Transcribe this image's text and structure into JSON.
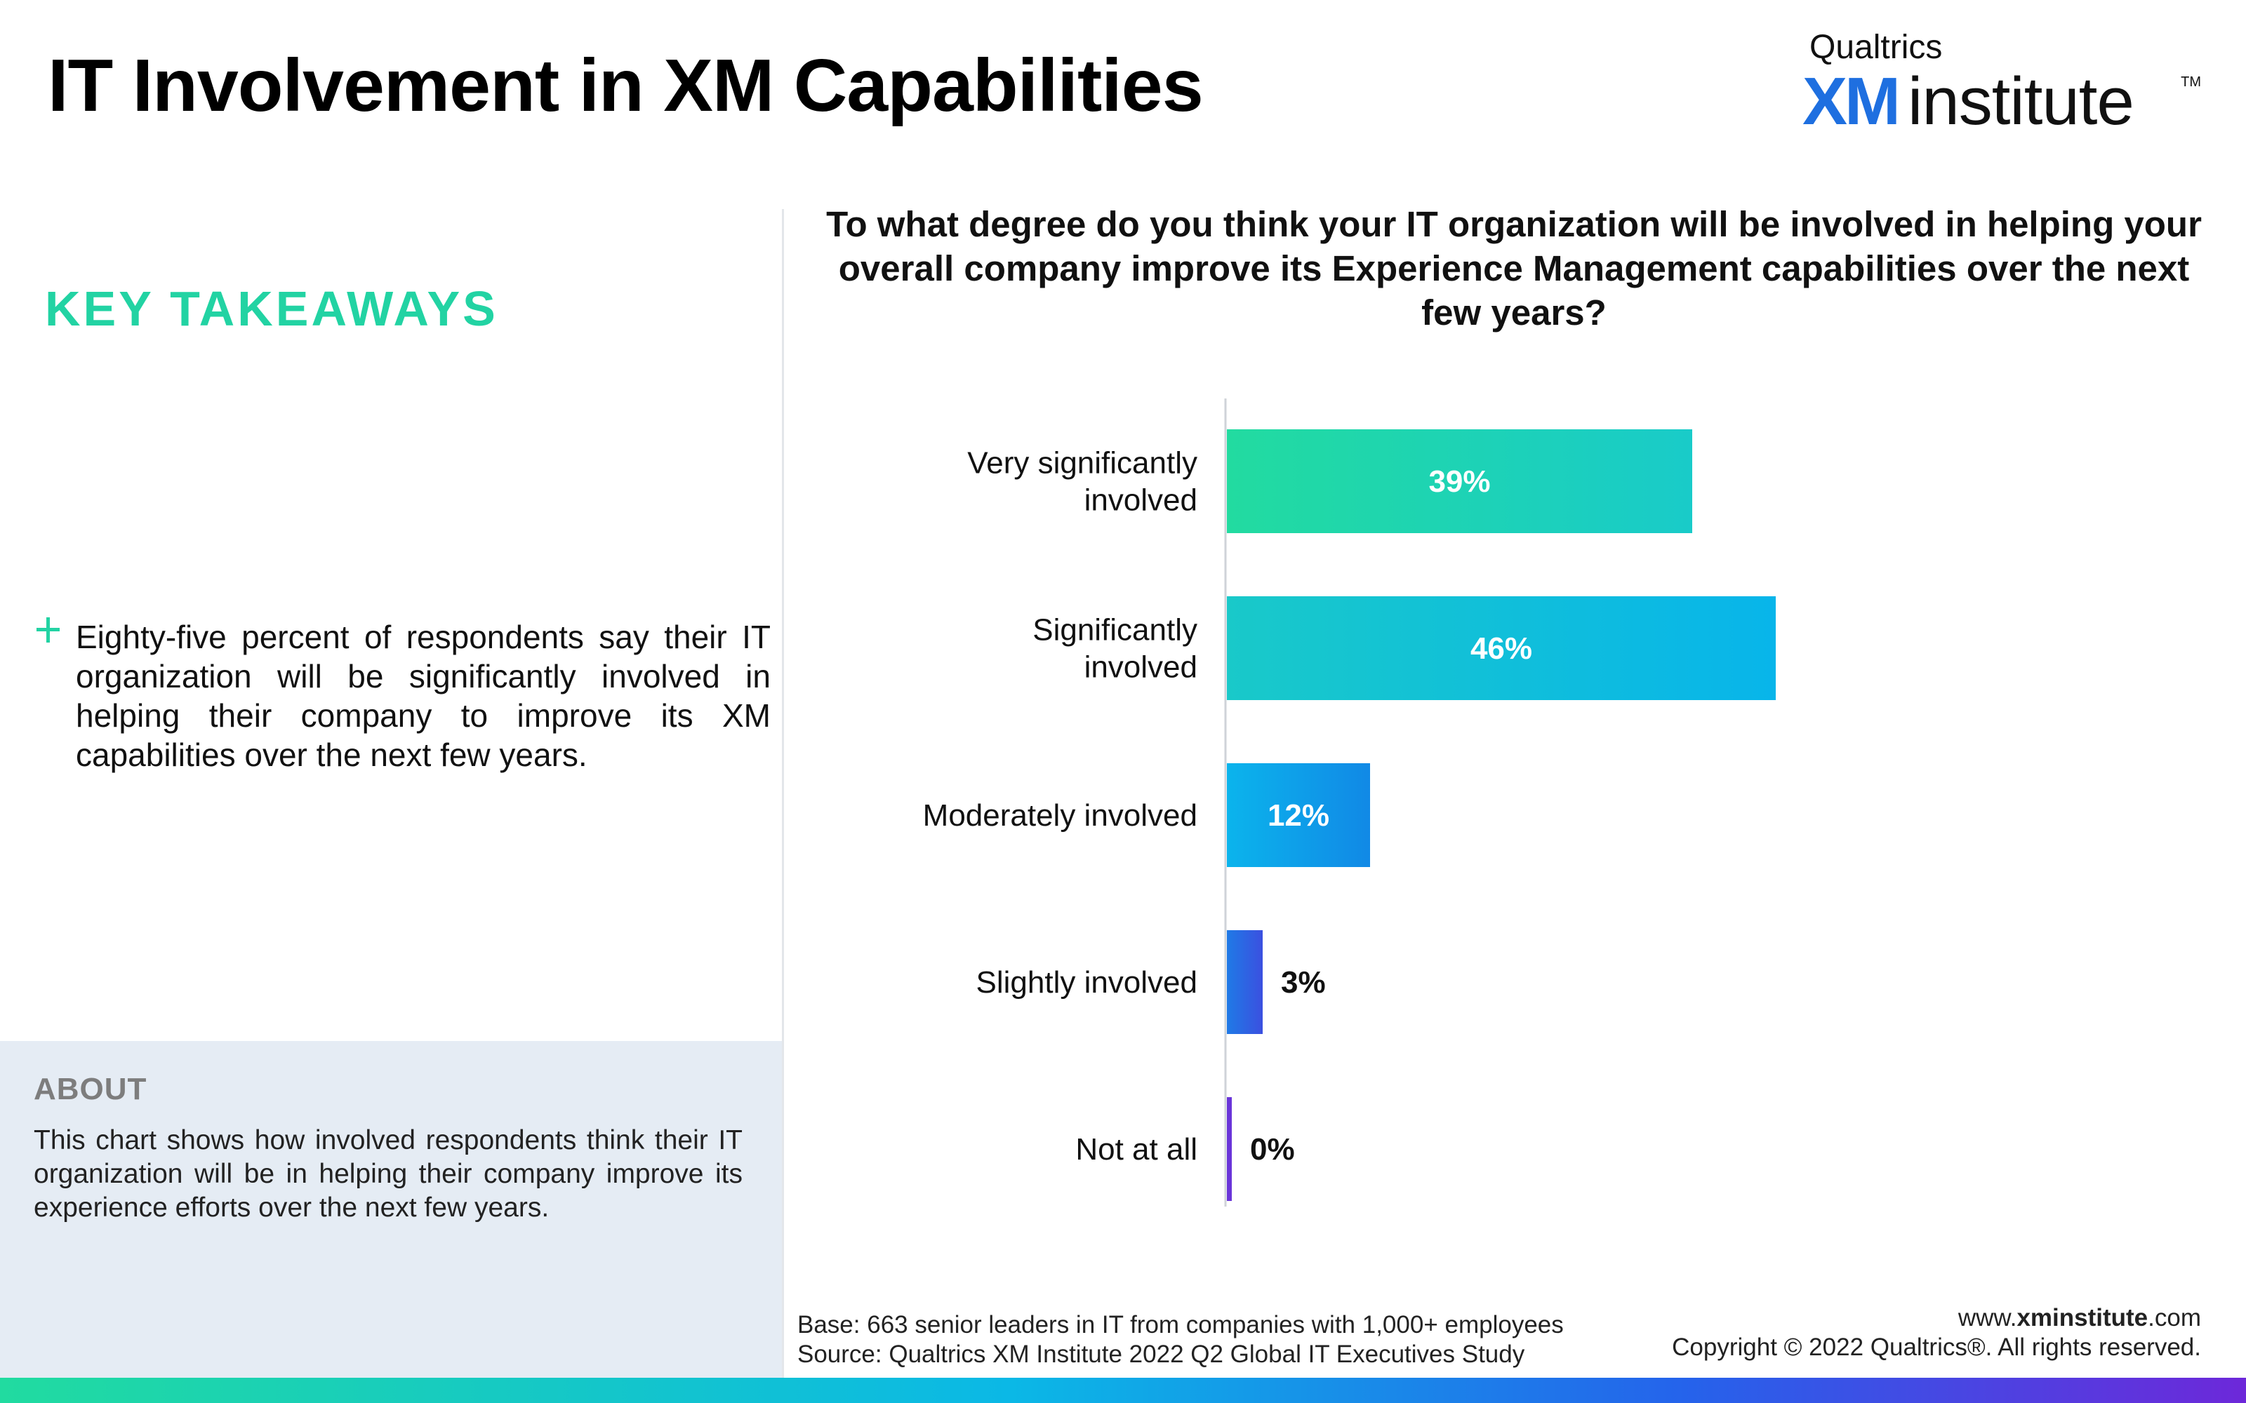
{
  "header": {
    "title": "IT Involvement in XM Capabilities",
    "logo": {
      "brand": "Qualtrics",
      "mark": "XM",
      "word": "institute",
      "tm": "TM"
    }
  },
  "takeaways": {
    "heading": "KEY TAKEAWAYS",
    "items": [
      "Eighty-five percent of respondents say their IT organization will be significantly involved in helping their company to improve its XM capabilities over the next few years."
    ]
  },
  "about": {
    "heading": "ABOUT",
    "text": "This chart shows how involved respondents think their IT organization will be in helping their company improve its experience efforts over the next few years."
  },
  "chart_data": {
    "type": "bar",
    "orientation": "horizontal",
    "title": "To what degree do you think your IT organization will be involved in helping your overall company improve its Experience Management capabilities over the next few years?",
    "categories": [
      [
        "Very significantly",
        "involved"
      ],
      [
        "Significantly",
        "involved"
      ],
      [
        "Moderately involved"
      ],
      [
        "Slightly involved"
      ],
      [
        "Not at all"
      ]
    ],
    "values": [
      39,
      46,
      12,
      3,
      0
    ],
    "labels": [
      "39%",
      "46%",
      "12%",
      "3%",
      "0%"
    ],
    "xlim": [
      0,
      100
    ],
    "colors": [
      [
        "#22dba0",
        "#19cbc9"
      ],
      [
        "#19c9c9",
        "#08b5ea"
      ],
      [
        "#0bb4ec",
        "#1189e6"
      ],
      [
        "#1f7ae6",
        "#3b50e0"
      ],
      [
        "#6a35d9",
        "#6a35d9"
      ]
    ]
  },
  "footer": {
    "base": "Base: 663 senior leaders in IT from companies with 1,000+ employees",
    "source": "Source: Qualtrics XM Institute 2022 Q2 Global IT Executives Study",
    "url_prefix": "www.",
    "url_bold": "xminstitute",
    "url_suffix": ".com",
    "copyright": "Copyright © 2022 Qualtrics®. All rights reserved."
  }
}
